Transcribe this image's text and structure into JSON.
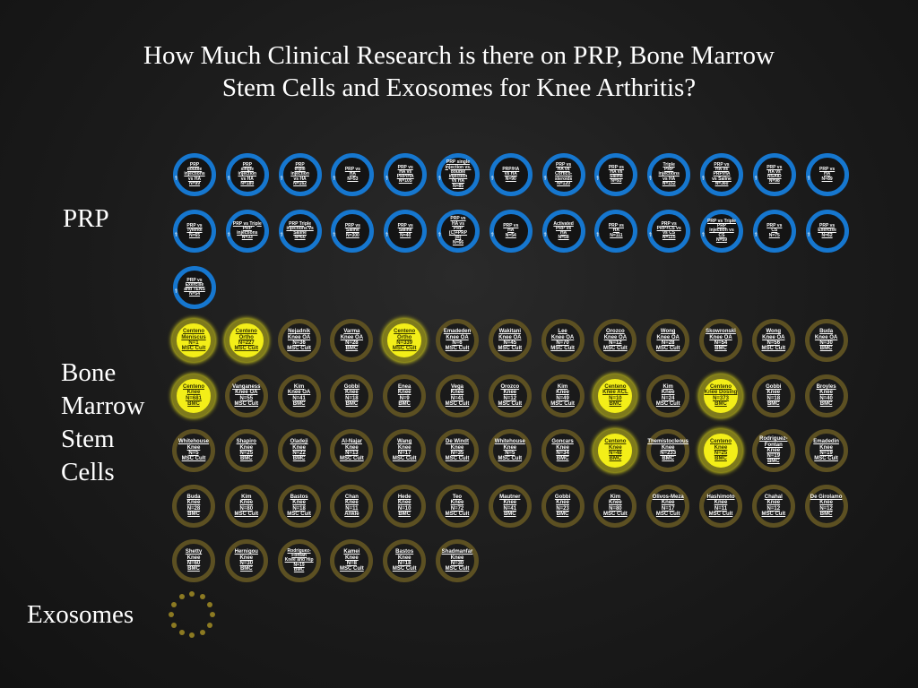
{
  "title_line1": "How Much Clinical Research is there on PRP, Bone Marrow",
  "title_line2": "Stem Cells and Exosomes for Knee Arthritis?",
  "labels": {
    "prp": "PRP",
    "bm1": "Bone",
    "bm2": "Marrow",
    "bm3": "Stem",
    "bm4": "Cells",
    "exo": "Exosomes"
  },
  "colors": {
    "prp_ring": "#1677cf",
    "bm_ring": "#5c5022",
    "highlight": "#f3ee18"
  },
  "prp_studies": [
    "PRP\ndouble\ninjections\nvs HA\nN=99",
    "PRP\nsingle\ninjection\nvs HA\nN=180",
    "PRP\ntriple\ninjection\nvs HA\nN=162",
    "PRP vs\nHA\nN=53",
    "PRP vs\nHA vs\nPRP/HA\nN=105",
    "PRP single\ninjection vs.\ndouble injection\nvs HA\nN=85",
    "PRP/HA\nvs HA\nN=90",
    "PRP vs\nHA vs\nCortico-\nsteroids\nN=120",
    "PRP vs\nHA vs\nSaline\nN=93",
    "Triple\nPRP\ninjections\nvs HA\nN=152",
    "PRP vs\nHA vs\nPRP/HA\nvs Saline\nN=360",
    "PRP vs\nHA vs\nNSAID\nN=98",
    "PRP vs\nHA\nN=89",
    "PRP vs\nTylenol\nN=65",
    "PRP vs Triple\nPRP\ninjections\nN=33",
    "PRP Triple\ninjections vs\nSaline\nN=60",
    "PRP vs\nSaline\nN=300",
    "PRP vs\nSaline\nN=40",
    "PRP vs\nHA vs\nPRP\n(C)+PRP\n(B)\nN=66",
    "PRP vs\nHA\nN=54",
    "Activated\nPRP vs\nHA\nN=58",
    "PRP vs\nHA\nN=111",
    "PRP vs\nPRP+CS vs\nvs CS\nN=115",
    "PRP vs Triple\nPRP\ninjection vs\nCS\nN=59",
    "PRP vs\nCS\nN=75",
    "PRP vs\nExercise\nN=62",
    "PRP vs\nExercise\nand TENS\nN=54"
  ],
  "bm_studies": [
    "Centeno\nMeniscus\nN=1\nMSC Cult",
    "Centeno\nOrtho\nN=227\nMSC Cult",
    "Nejadnik\nKnee OA\nN=36\nMSC Cult",
    "Varma\nKnee OA\nN=28\nBMC",
    "Centeno\nOrtho\nN=339\nMSC Cult",
    "Emadeden\nKnee OA\nN=6\nMSC Cult",
    "Wakitani\nKnee OA\nN=45\nMSC Cult",
    "Lee\nKnee OA\nN=70\nMSC Cult",
    "Orozco\nKnee OA\nN=12\nMSC Cult",
    "Wong\nKnee OA\nN=28\nMSC Cult",
    "Skowronski\nKnee OA\nN=54\nBMC",
    "Wong\nKnee OA\nN=56\nMSC Cult",
    "Buda\nKnee OA\nN=30\nBMC",
    "Centeno\nKnee\nN=681\nBMC",
    "Vanganess\nKnee OA\nN=55\nMSC Cult",
    "Kim\nKnee OA\nN=41\nBMC",
    "Gobbi\nKnee\nN=18\nBMC",
    "Enea\nKnee\nN=9\nBMC",
    "Vega\nKnee\nN=41\nMSC Cult",
    "Orozco\nKnee\nN=12\nMSC Cult",
    "Kim\nKnee\nN=49\nMSC Cult",
    "Centeno\nKnee ACL\nN=10\nBMC",
    "Kim\nKnee\nN=24\nMSC Cult",
    "Centeno\nKnee Dosing\nN=373\nBMC",
    "Gobbi\nKnee\nN=18\nBMC",
    "Broyles\nKnee\nN=40\nBMC",
    "Whitehouse\nKnee\nN=5\nMSC Cult",
    "Shapiro\nKnee\nN=25\nBMC",
    "Oladeji\nKnee\nN=22\nBMC",
    "Al-Najar\nKnee\nN=13\nMSC Cult",
    "Wang\nKnee\nN=17\nMSC Cult",
    "De Windt\nKnee\nN=35\nMSC Cult",
    "Whitehouse\nKnee\nN=5\nMSC Cult",
    "Goncars\nKnee\nN=34\nBMC",
    "Centeno\nKnee\nN=48\nBMC",
    "Themistocleous\nKnee\nN=233\nBMC",
    "Centeno\nKnee\nN=25\nBMC",
    "Rodriguez-Fontan\nKnee\nN=19\nBMC",
    "Emadedin\nKnee\nN=19\nMSC Cult",
    "Buda\nKnee\nN=28\nBMC",
    "Kim\nKnee\nN=80\nMSC Cult",
    "Bastos\nKnee\nN=18\nMSC Cult",
    "Chan\nKnee\nN=11\nAnkle",
    "Hede\nKnee\nN=10\nBMC",
    "Teo\nKnee\nN=72\nMSC Cult",
    "Mautner\nKnee\nN=41\nBMC",
    "Gobbi\nKnee\nN=23\nBMC",
    "Kim\nKnee\nN=80\nMSC Cult",
    "Olivos-Meza\nKnee\nN=17\nMSC Cult",
    "Hashimoto\nKnee\nN=11\nMSC Cult",
    "Chahal\nKnee\nN=12\nMSC Cult",
    "De Girolamo\nKnee\nN=12\nBMC",
    "Shetty\nKnee\nN=60\nBMC",
    "Hernigou\nKnee\nN=30\nBMC",
    "Rodriguez-Fontan\nKnee and Hip\nN=19\nBMC",
    "Kamei\nKnee\nN=8\nMSC Cult",
    "Bastos\nKnee\nN=18\nMSC Cult",
    "Shadmanfar\nKnee\nN=30\nMSC Cult"
  ],
  "bm_highlighted": [
    true,
    true,
    false,
    false,
    true,
    false,
    false,
    false,
    false,
    false,
    false,
    false,
    false,
    true,
    false,
    false,
    false,
    false,
    false,
    false,
    false,
    true,
    false,
    true,
    false,
    false,
    false,
    false,
    false,
    false,
    false,
    false,
    false,
    false,
    true,
    false,
    true,
    false,
    false,
    false,
    false,
    false,
    false,
    false,
    false,
    false,
    false,
    false,
    false,
    false,
    false,
    false,
    false,
    false,
    false,
    false,
    false,
    false
  ]
}
